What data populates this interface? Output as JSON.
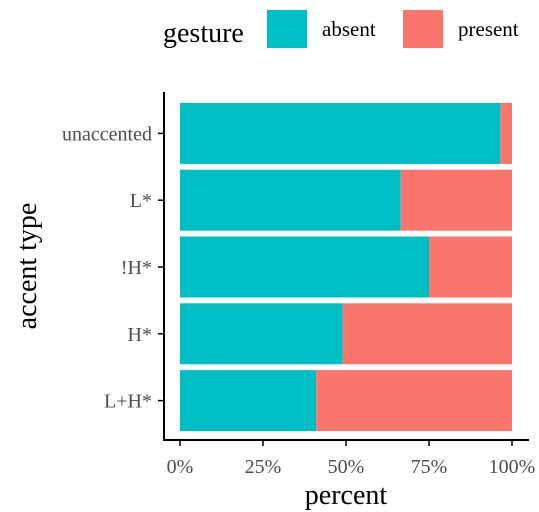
{
  "chart_data": {
    "type": "bar",
    "orientation": "horizontal",
    "stacked": true,
    "normalized": true,
    "categories": [
      "unaccented",
      "L*",
      "!H*",
      "H*",
      "L+H*"
    ],
    "series": [
      {
        "name": "absent",
        "color": "#00BFC4",
        "values": [
          96.5,
          66.5,
          75,
          49,
          41
        ]
      },
      {
        "name": "present",
        "color": "#F8766D",
        "values": [
          3.5,
          33.5,
          25,
          51,
          59
        ]
      }
    ],
    "xlabel": "percent",
    "ylabel": "accent type",
    "xlim": [
      0,
      100
    ],
    "x_ticks": [
      "0%",
      "25%",
      "50%",
      "75%",
      "100%"
    ],
    "x_tick_values": [
      0,
      25,
      50,
      75,
      100
    ],
    "legend": {
      "title": "gesture",
      "position": "top"
    },
    "grid": false
  }
}
